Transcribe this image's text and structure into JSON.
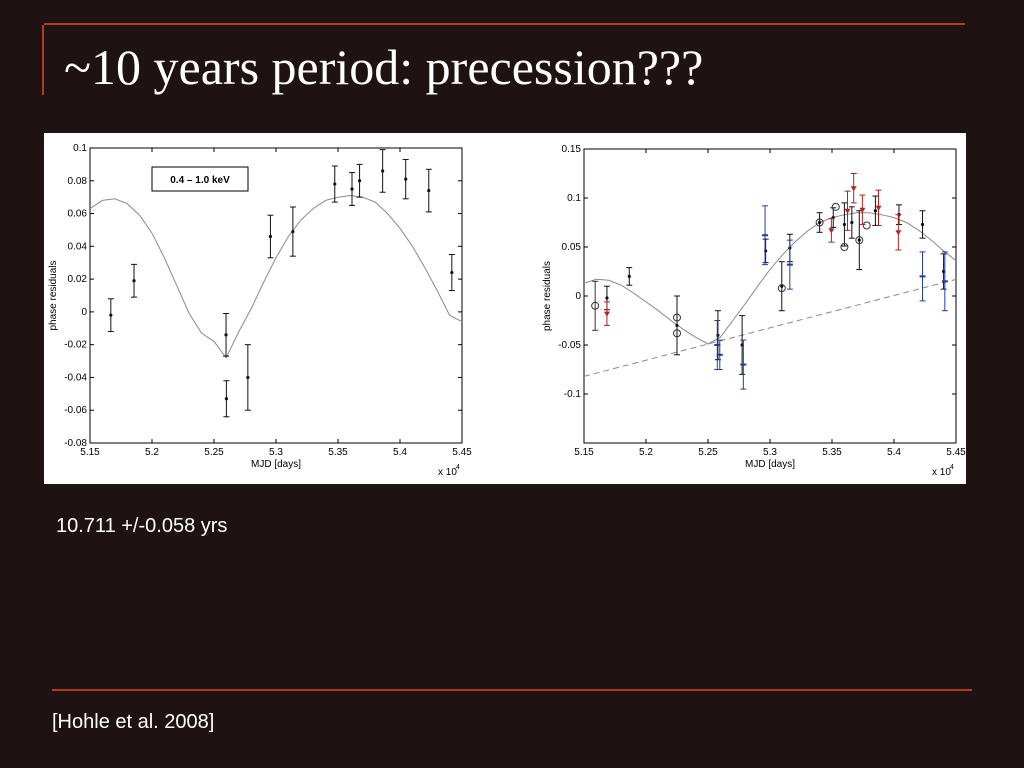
{
  "slide": {
    "title": "~10 years period: precession???",
    "result": "10.711 +/-0.058 yrs",
    "citation": "[Hohle et al. 2008]"
  },
  "chart_data": [
    {
      "type": "scatter",
      "annotation": "0.4 – 1.0 keV",
      "xlabel": "MJD [days]",
      "ylabel": "phase residuals",
      "x_multiplier": "x 10",
      "x_multiplier_exp": "4",
      "xlim": [
        5.15,
        5.45
      ],
      "ylim": [
        -0.08,
        0.1
      ],
      "xticks": [
        "5.15",
        "5.2",
        "5.25",
        "5.3",
        "5.35",
        "5.4",
        "5.45"
      ],
      "yticks": [
        "-0.08",
        "-0.06",
        "-0.04",
        "-0.02",
        "0",
        "0.02",
        "0.04",
        "0.06",
        "0.08",
        "0.1"
      ],
      "xtick_values": [
        5.15,
        5.2,
        5.25,
        5.3,
        5.35,
        5.4,
        5.45
      ],
      "ytick_values": [
        -0.08,
        -0.06,
        -0.04,
        -0.02,
        0,
        0.02,
        0.04,
        0.06,
        0.08,
        0.1
      ],
      "series": [
        {
          "marker": "dot",
          "color": "#111111",
          "points": [
            {
              "x": 5.1668,
              "y": -0.002,
              "err": 0.01
            },
            {
              "x": 5.1855,
              "y": 0.019,
              "err": 0.01
            },
            {
              "x": 5.2597,
              "y": -0.014,
              "err": 0.013
            },
            {
              "x": 5.26,
              "y": -0.053,
              "err": 0.011
            },
            {
              "x": 5.2773,
              "y": -0.04,
              "err": 0.02
            },
            {
              "x": 5.2955,
              "y": 0.046,
              "err": 0.013
            },
            {
              "x": 5.3136,
              "y": 0.049,
              "err": 0.015
            },
            {
              "x": 5.3474,
              "y": 0.078,
              "err": 0.011
            },
            {
              "x": 5.3613,
              "y": 0.075,
              "err": 0.01
            },
            {
              "x": 5.3674,
              "y": 0.08,
              "err": 0.01
            },
            {
              "x": 5.386,
              "y": 0.086,
              "err": 0.013
            },
            {
              "x": 5.4046,
              "y": 0.081,
              "err": 0.012
            },
            {
              "x": 5.4232,
              "y": 0.074,
              "err": 0.013
            },
            {
              "x": 5.4418,
              "y": 0.024,
              "err": 0.011
            }
          ]
        }
      ],
      "model": {
        "color": "#8a8a8a",
        "points": [
          [
            5.15,
            0.063
          ],
          [
            5.16,
            0.068
          ],
          [
            5.17,
            0.069
          ],
          [
            5.18,
            0.066
          ],
          [
            5.19,
            0.059
          ],
          [
            5.2,
            0.048
          ],
          [
            5.21,
            0.033
          ],
          [
            5.22,
            0.016
          ],
          [
            5.23,
            -0.001
          ],
          [
            5.24,
            -0.013
          ],
          [
            5.25,
            -0.018
          ],
          [
            5.2598,
            -0.028
          ],
          [
            5.27,
            -0.012
          ],
          [
            5.28,
            0.002
          ],
          [
            5.29,
            0.018
          ],
          [
            5.3,
            0.033
          ],
          [
            5.31,
            0.046
          ],
          [
            5.32,
            0.056
          ],
          [
            5.33,
            0.063
          ],
          [
            5.34,
            0.068
          ],
          [
            5.35,
            0.07
          ],
          [
            5.36,
            0.071
          ],
          [
            5.37,
            0.07
          ],
          [
            5.38,
            0.067
          ],
          [
            5.39,
            0.06
          ],
          [
            5.4,
            0.051
          ],
          [
            5.41,
            0.04
          ],
          [
            5.42,
            0.027
          ],
          [
            5.43,
            0.013
          ],
          [
            5.44,
            -0.002
          ],
          [
            5.45,
            -0.006
          ]
        ]
      }
    },
    {
      "type": "scatter",
      "xlabel": "MJD [days]",
      "ylabel": "phase residuals",
      "x_multiplier": "x 10",
      "x_multiplier_exp": "4",
      "xlim": [
        5.15,
        5.45
      ],
      "ylim": [
        -0.15,
        0.15
      ],
      "xticks": [
        "5.15",
        "5.2",
        "5.25",
        "5.3",
        "5.35",
        "5.4",
        "5.45"
      ],
      "yticks": [
        "",
        "-0.1",
        "-0.05",
        "0",
        "0.05",
        "0.1",
        "0.15"
      ],
      "xtick_values": [
        5.15,
        5.2,
        5.25,
        5.3,
        5.35,
        5.4,
        5.45
      ],
      "ytick_values": [
        -0.15,
        -0.1,
        -0.05,
        0,
        0.05,
        0.1,
        0.15
      ],
      "series": [
        {
          "marker": "dot",
          "color": "#111111",
          "points": [
            {
              "x": 5.1685,
              "y": -0.002,
              "err": 0.012
            },
            {
              "x": 5.1865,
              "y": 0.02,
              "err": 0.009
            },
            {
              "x": 5.225,
              "y": -0.03,
              "err": 0.03
            },
            {
              "x": 5.258,
              "y": -0.04,
              "err": 0.025
            },
            {
              "x": 5.2775,
              "y": -0.05,
              "err": 0.03
            },
            {
              "x": 5.2965,
              "y": 0.046,
              "err": 0.012
            },
            {
              "x": 5.3095,
              "y": 0.01,
              "err": 0.025
            },
            {
              "x": 5.316,
              "y": 0.049,
              "err": 0.014
            },
            {
              "x": 5.34,
              "y": 0.075,
              "err": 0.01
            },
            {
              "x": 5.351,
              "y": 0.08,
              "err": 0.01
            },
            {
              "x": 5.36,
              "y": 0.073,
              "err": 0.022
            },
            {
              "x": 5.366,
              "y": 0.075,
              "err": 0.016
            },
            {
              "x": 5.372,
              "y": 0.057,
              "err": 0.03
            },
            {
              "x": 5.385,
              "y": 0.087,
              "err": 0.015
            },
            {
              "x": 5.404,
              "y": 0.083,
              "err": 0.01
            },
            {
              "x": 5.423,
              "y": 0.073,
              "err": 0.014
            },
            {
              "x": 5.44,
              "y": 0.025,
              "err": 0.018
            }
          ]
        },
        {
          "marker": "circle",
          "color": "#333333",
          "points": [
            {
              "x": 5.159,
              "y": -0.01,
              "err": 0.025
            },
            {
              "x": 5.225,
              "y": -0.038,
              "err": 0
            },
            {
              "x": 5.225,
              "y": -0.022,
              "err": 0
            },
            {
              "x": 5.3095,
              "y": 0.008,
              "err": 0
            },
            {
              "x": 5.34,
              "y": 0.075,
              "err": 0
            },
            {
              "x": 5.353,
              "y": 0.091,
              "err": 0
            },
            {
              "x": 5.36,
              "y": 0.05,
              "err": 0
            },
            {
              "x": 5.372,
              "y": 0.057,
              "err": 0
            },
            {
              "x": 5.378,
              "y": 0.072,
              "err": 0
            }
          ]
        },
        {
          "marker": "triangle",
          "color": "#b22222",
          "points": [
            {
              "x": 5.1685,
              "y": -0.018,
              "err": 0.012
            },
            {
              "x": 5.3495,
              "y": 0.067,
              "err": 0.012
            },
            {
              "x": 5.3625,
              "y": 0.087,
              "err": 0.02
            },
            {
              "x": 5.3675,
              "y": 0.11,
              "err": 0.015
            },
            {
              "x": 5.3745,
              "y": 0.088,
              "err": 0.015
            },
            {
              "x": 5.3875,
              "y": 0.09,
              "err": 0.018
            },
            {
              "x": 5.4035,
              "y": 0.065,
              "err": 0.018
            }
          ]
        },
        {
          "marker": "dash",
          "color": "#1f3fa0",
          "points": [
            {
              "x": 5.2575,
              "y": -0.05,
              "err": 0.025
            },
            {
              "x": 5.2595,
              "y": -0.06,
              "err": 0.015
            },
            {
              "x": 5.2785,
              "y": -0.07,
              "err": 0.025
            },
            {
              "x": 5.296,
              "y": 0.062,
              "err": 0.03
            },
            {
              "x": 5.316,
              "y": 0.032,
              "err": 0.025
            },
            {
              "x": 5.423,
              "y": 0.02,
              "err": 0.025
            },
            {
              "x": 5.441,
              "y": 0.015,
              "err": 0.03
            }
          ]
        }
      ],
      "model": {
        "color": "#8a8a8a",
        "points": [
          [
            5.15,
            0.013
          ],
          [
            5.16,
            0.017
          ],
          [
            5.17,
            0.016
          ],
          [
            5.18,
            0.011
          ],
          [
            5.19,
            0.003
          ],
          [
            5.2,
            -0.006
          ],
          [
            5.21,
            -0.015
          ],
          [
            5.22,
            -0.025
          ],
          [
            5.23,
            -0.034
          ],
          [
            5.24,
            -0.042
          ],
          [
            5.25,
            -0.049
          ],
          [
            5.26,
            -0.042
          ],
          [
            5.27,
            -0.025
          ],
          [
            5.28,
            -0.008
          ],
          [
            5.29,
            0.01
          ],
          [
            5.3,
            0.027
          ],
          [
            5.31,
            0.042
          ],
          [
            5.32,
            0.055
          ],
          [
            5.33,
            0.066
          ],
          [
            5.34,
            0.075
          ],
          [
            5.35,
            0.08
          ],
          [
            5.36,
            0.083
          ],
          [
            5.37,
            0.085
          ],
          [
            5.38,
            0.085
          ],
          [
            5.39,
            0.083
          ],
          [
            5.4,
            0.08
          ],
          [
            5.41,
            0.075
          ],
          [
            5.42,
            0.067
          ],
          [
            5.43,
            0.057
          ],
          [
            5.44,
            0.046
          ],
          [
            5.45,
            0.036
          ]
        ]
      },
      "trend": {
        "color": "#8a8a8a",
        "points": [
          [
            5.15,
            -0.082
          ],
          [
            5.45,
            0.017
          ]
        ]
      }
    }
  ]
}
